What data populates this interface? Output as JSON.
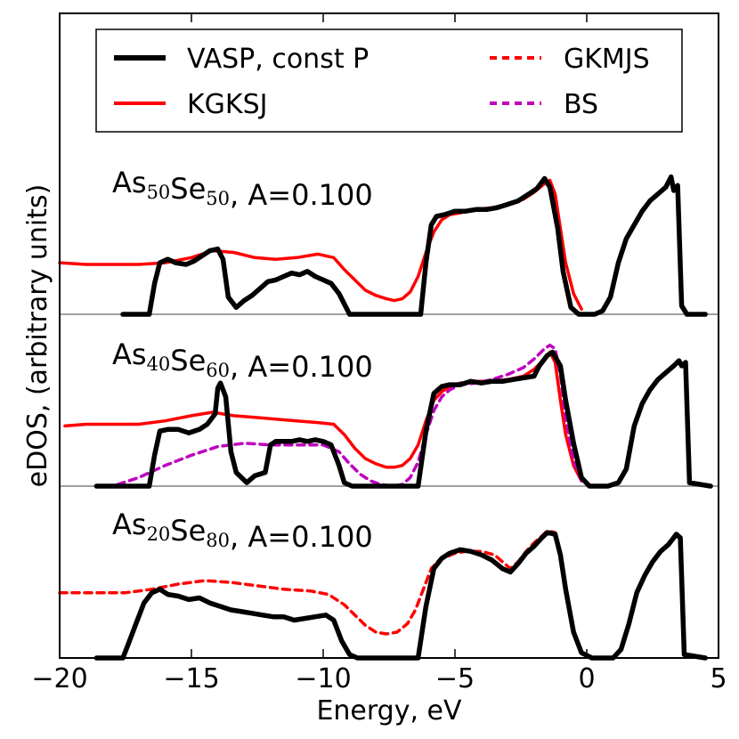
{
  "chart_data": {
    "type": "line",
    "xlabel": "Energy, eV",
    "ylabel": "eDOS, (arbitrary units)",
    "xlim": [
      -20,
      5
    ],
    "xticks": [
      -20,
      -15,
      -10,
      -5,
      0,
      5
    ],
    "xtick_labels": [
      "−20",
      "−15",
      "−10",
      "−5",
      "0",
      "5"
    ],
    "legend": {
      "placement": "top-center",
      "entries": [
        {
          "label": "VASP, const P",
          "color": "#000000",
          "style": "solid"
        },
        {
          "label": "KGKSJ",
          "color": "#ff0000",
          "style": "solid"
        },
        {
          "label": "GKMJS",
          "color": "#ff0000",
          "style": "dashed"
        },
        {
          "label": "BS",
          "color": "#bf00bf",
          "style": "dashed"
        }
      ]
    },
    "panels": [
      {
        "label_parts": [
          {
            "text": "As",
            "sub": false
          },
          {
            "text": "50",
            "sub": true
          },
          {
            "text": "Se",
            "sub": false
          },
          {
            "text": "50",
            "sub": true
          },
          {
            "text": ", A=0.100",
            "sub": false
          }
        ],
        "series": [
          {
            "name": "VASP, const P",
            "x": [
              -17.6,
              -16.6,
              -16.4,
              -16.2,
              -15.9,
              -15.6,
              -15.2,
              -14.9,
              -14.6,
              -14.3,
              -14.0,
              -13.8,
              -13.6,
              -13.3,
              -13.0,
              -12.7,
              -12.4,
              -12.1,
              -11.8,
              -11.5,
              -11.2,
              -10.9,
              -10.6,
              -10.3,
              -10.0,
              -9.7,
              -9.4,
              -9.2,
              -9.0,
              -8.7,
              -6.3,
              -6.1,
              -5.9,
              -5.7,
              -5.4,
              -5.0,
              -4.6,
              -4.2,
              -3.8,
              -3.4,
              -3.0,
              -2.6,
              -2.2,
              -1.9,
              -1.6,
              -1.4,
              -1.1,
              -0.9,
              -0.6,
              -0.3,
              0.0,
              0.3,
              0.6,
              0.9,
              1.2,
              1.5,
              1.8,
              2.1,
              2.4,
              2.7,
              3.0,
              3.2,
              3.3,
              3.45,
              3.6,
              3.8,
              4.5
            ],
            "y": [
              0.0,
              0.0,
              0.18,
              0.3,
              0.32,
              0.3,
              0.29,
              0.31,
              0.34,
              0.37,
              0.38,
              0.32,
              0.1,
              0.04,
              0.08,
              0.11,
              0.15,
              0.19,
              0.2,
              0.22,
              0.24,
              0.23,
              0.25,
              0.22,
              0.2,
              0.18,
              0.12,
              0.06,
              0.0,
              0.0,
              0.0,
              0.3,
              0.52,
              0.57,
              0.58,
              0.6,
              0.6,
              0.61,
              0.61,
              0.62,
              0.64,
              0.66,
              0.7,
              0.73,
              0.79,
              0.74,
              0.5,
              0.25,
              0.04,
              0.0,
              0.0,
              0.0,
              0.02,
              0.1,
              0.3,
              0.44,
              0.52,
              0.6,
              0.66,
              0.7,
              0.74,
              0.8,
              0.72,
              0.75,
              0.05,
              0.0,
              0.0
            ]
          },
          {
            "name": "KGKSJ",
            "x": [
              -20.0,
              -19.0,
              -18.0,
              -17.0,
              -16.0,
              -15.0,
              -14.2,
              -13.4,
              -12.6,
              -11.8,
              -11.0,
              -10.2,
              -9.6,
              -9.2,
              -8.8,
              -8.4,
              -8.0,
              -7.6,
              -7.3,
              -7.0,
              -6.7,
              -6.4,
              -6.1,
              -5.8,
              -5.5,
              -5.2,
              -4.8,
              -4.2,
              -3.6,
              -3.0,
              -2.4,
              -2.0,
              -1.6,
              -1.4,
              -1.2,
              -1.0,
              -0.8,
              -0.5,
              -0.2
            ],
            "y": [
              0.3,
              0.29,
              0.29,
              0.29,
              0.3,
              0.33,
              0.37,
              0.36,
              0.33,
              0.32,
              0.33,
              0.35,
              0.33,
              0.26,
              0.2,
              0.14,
              0.11,
              0.09,
              0.08,
              0.09,
              0.13,
              0.22,
              0.36,
              0.48,
              0.55,
              0.58,
              0.59,
              0.61,
              0.62,
              0.64,
              0.67,
              0.71,
              0.76,
              0.78,
              0.7,
              0.5,
              0.3,
              0.12,
              0.03
            ]
          }
        ]
      },
      {
        "label_parts": [
          {
            "text": "As",
            "sub": false
          },
          {
            "text": "40",
            "sub": true
          },
          {
            "text": "Se",
            "sub": false
          },
          {
            "text": "60",
            "sub": true
          },
          {
            "text": ", A=0.100",
            "sub": false
          }
        ],
        "series": [
          {
            "name": "VASP, const P",
            "x": [
              -18.6,
              -16.6,
              -16.4,
              -16.2,
              -15.9,
              -15.5,
              -15.1,
              -14.7,
              -14.4,
              -14.1,
              -14.0,
              -13.9,
              -13.7,
              -13.5,
              -13.3,
              -12.9,
              -12.6,
              -12.2,
              -12.0,
              -11.8,
              -11.5,
              -11.2,
              -10.9,
              -10.6,
              -10.3,
              -10.0,
              -9.7,
              -9.4,
              -9.2,
              -8.9,
              -6.4,
              -6.1,
              -5.8,
              -5.5,
              -5.2,
              -4.8,
              -4.4,
              -4.0,
              -3.6,
              -3.2,
              -2.8,
              -2.4,
              -2.0,
              -1.8,
              -1.5,
              -1.3,
              -1.0,
              -0.8,
              -0.5,
              -0.2,
              0.1,
              0.4,
              0.8,
              1.2,
              1.5,
              1.8,
              2.1,
              2.4,
              2.7,
              3.0,
              3.3,
              3.5,
              3.6,
              3.75,
              3.9,
              4.7
            ],
            "y": [
              0.0,
              0.0,
              0.18,
              0.32,
              0.33,
              0.33,
              0.31,
              0.33,
              0.36,
              0.42,
              0.57,
              0.6,
              0.52,
              0.2,
              0.08,
              0.02,
              0.06,
              0.08,
              0.24,
              0.26,
              0.26,
              0.26,
              0.27,
              0.26,
              0.27,
              0.26,
              0.24,
              0.12,
              0.02,
              0.0,
              0.0,
              0.32,
              0.54,
              0.58,
              0.59,
              0.59,
              0.61,
              0.6,
              0.61,
              0.61,
              0.62,
              0.63,
              0.64,
              0.7,
              0.76,
              0.78,
              0.7,
              0.5,
              0.25,
              0.05,
              0.0,
              0.0,
              0.0,
              0.02,
              0.1,
              0.35,
              0.48,
              0.56,
              0.62,
              0.66,
              0.7,
              0.73,
              0.7,
              0.72,
              0.02,
              0.0
            ]
          },
          {
            "name": "KGKSJ",
            "x": [
              -19.8,
              -19.0,
              -18.0,
              -17.0,
              -16.0,
              -15.0,
              -14.2,
              -13.4,
              -12.6,
              -11.8,
              -11.0,
              -10.2,
              -9.6,
              -9.2,
              -8.8,
              -8.4,
              -8.0,
              -7.6,
              -7.3,
              -7.0,
              -6.7,
              -6.4,
              -6.1,
              -5.8,
              -5.5,
              -5.2,
              -4.8,
              -4.2,
              -3.6,
              -3.0,
              -2.4,
              -2.0,
              -1.6,
              -1.4,
              -1.2,
              -1.0,
              -0.8,
              -0.5,
              -0.2
            ],
            "y": [
              0.35,
              0.36,
              0.36,
              0.36,
              0.38,
              0.41,
              0.43,
              0.41,
              0.4,
              0.39,
              0.38,
              0.37,
              0.36,
              0.3,
              0.22,
              0.16,
              0.13,
              0.11,
              0.11,
              0.12,
              0.16,
              0.24,
              0.38,
              0.5,
              0.55,
              0.58,
              0.6,
              0.61,
              0.61,
              0.62,
              0.64,
              0.68,
              0.74,
              0.78,
              0.72,
              0.5,
              0.3,
              0.12,
              0.03
            ]
          },
          {
            "name": "BS",
            "x": [
              -17.8,
              -17.0,
              -16.0,
              -15.0,
              -14.0,
              -13.0,
              -12.0,
              -11.0,
              -10.0,
              -9.4,
              -9.0,
              -8.6,
              -8.2,
              -7.8,
              -7.4,
              -7.0,
              -6.7,
              -6.4,
              -6.1,
              -5.8,
              -5.5,
              -5.2,
              -4.8,
              -4.2,
              -3.6,
              -3.0,
              -2.4,
              -2.0,
              -1.6,
              -1.4,
              -1.2,
              -1.0,
              -0.8,
              -0.5,
              -0.2,
              0.2
            ],
            "y": [
              0.01,
              0.05,
              0.12,
              0.18,
              0.23,
              0.25,
              0.24,
              0.24,
              0.24,
              0.2,
              0.13,
              0.07,
              0.03,
              0.01,
              0.0,
              0.01,
              0.05,
              0.14,
              0.3,
              0.44,
              0.52,
              0.56,
              0.59,
              0.6,
              0.62,
              0.65,
              0.69,
              0.74,
              0.8,
              0.82,
              0.8,
              0.65,
              0.4,
              0.15,
              0.03,
              0.0
            ]
          }
        ]
      },
      {
        "label_parts": [
          {
            "text": "As",
            "sub": false
          },
          {
            "text": "20",
            "sub": true
          },
          {
            "text": "Se",
            "sub": false
          },
          {
            "text": "80",
            "sub": true
          },
          {
            "text": ", A=0.100",
            "sub": false
          }
        ],
        "series": [
          {
            "name": "VASP, const P",
            "x": [
              -18.6,
              -17.6,
              -17.4,
              -17.1,
              -16.8,
              -16.5,
              -16.2,
              -15.9,
              -15.5,
              -15.1,
              -14.7,
              -14.3,
              -13.9,
              -13.5,
              -13.1,
              -12.7,
              -12.3,
              -11.9,
              -11.5,
              -11.1,
              -10.7,
              -10.3,
              -9.9,
              -9.6,
              -9.3,
              -9.0,
              -8.7,
              -6.4,
              -6.1,
              -5.8,
              -5.5,
              -5.2,
              -4.8,
              -4.4,
              -4.0,
              -3.6,
              -3.2,
              -2.9,
              -2.6,
              -2.3,
              -2.0,
              -1.7,
              -1.5,
              -1.2,
              -1.0,
              -0.8,
              -0.5,
              -0.2,
              0.2,
              0.6,
              1.0,
              1.3,
              1.6,
              1.9,
              2.2,
              2.5,
              2.8,
              3.1,
              3.3,
              3.4,
              3.55,
              3.7,
              4.5
            ],
            "y": [
              0.0,
              0.0,
              0.08,
              0.2,
              0.32,
              0.38,
              0.4,
              0.37,
              0.36,
              0.34,
              0.35,
              0.32,
              0.3,
              0.28,
              0.27,
              0.26,
              0.25,
              0.24,
              0.24,
              0.22,
              0.23,
              0.24,
              0.25,
              0.22,
              0.1,
              0.02,
              0.0,
              0.0,
              0.3,
              0.52,
              0.58,
              0.61,
              0.63,
              0.62,
              0.6,
              0.57,
              0.52,
              0.5,
              0.55,
              0.61,
              0.65,
              0.7,
              0.73,
              0.72,
              0.6,
              0.4,
              0.15,
              0.03,
              0.0,
              0.0,
              0.0,
              0.05,
              0.2,
              0.38,
              0.48,
              0.56,
              0.62,
              0.66,
              0.7,
              0.72,
              0.7,
              0.02,
              0.0
            ]
          },
          {
            "name": "GKMJS",
            "x": [
              -20.0,
              -18.5,
              -17.5,
              -16.5,
              -15.5,
              -14.5,
              -13.5,
              -12.5,
              -11.5,
              -10.5,
              -9.8,
              -9.2,
              -8.8,
              -8.4,
              -8.0,
              -7.6,
              -7.2,
              -6.8,
              -6.5,
              -6.2,
              -5.9,
              -5.6,
              -5.3,
              -5.0,
              -4.6,
              -4.0,
              -3.5,
              -3.2,
              -2.9,
              -2.6,
              -2.3,
              -2.0,
              -1.7,
              -1.5,
              -1.2,
              -1.0,
              -0.8,
              -0.5,
              -0.2
            ],
            "y": [
              0.38,
              0.38,
              0.38,
              0.4,
              0.43,
              0.45,
              0.44,
              0.42,
              0.4,
              0.39,
              0.37,
              0.31,
              0.25,
              0.19,
              0.15,
              0.14,
              0.15,
              0.2,
              0.28,
              0.4,
              0.52,
              0.57,
              0.59,
              0.61,
              0.62,
              0.62,
              0.6,
              0.56,
              0.52,
              0.56,
              0.62,
              0.67,
              0.71,
              0.74,
              0.73,
              0.6,
              0.4,
              0.15,
              0.03
            ]
          }
        ]
      }
    ]
  }
}
